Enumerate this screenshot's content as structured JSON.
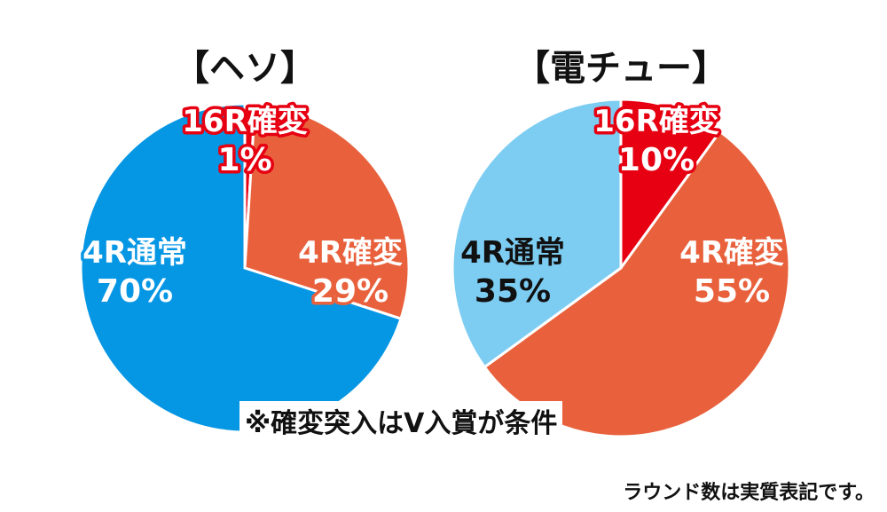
{
  "chart_data": [
    {
      "type": "pie",
      "title": "【ヘソ】",
      "slices": [
        {
          "label": "16R確変",
          "value": 1,
          "display": "1%",
          "color": "#e60012",
          "label_style": "outlined-red"
        },
        {
          "label": "4R確変",
          "value": 29,
          "display": "29%",
          "color": "#e8613c",
          "label_style": "outlined-white"
        },
        {
          "label": "4R通常",
          "value": 70,
          "display": "70%",
          "color": "#0596e4",
          "label_style": "outlined-white"
        }
      ]
    },
    {
      "type": "pie",
      "title": "【電チュー】",
      "slices": [
        {
          "label": "16R確変",
          "value": 10,
          "display": "10%",
          "color": "#e60012",
          "label_style": "outlined-red"
        },
        {
          "label": "4R確変",
          "value": 55,
          "display": "55%",
          "color": "#e8613c",
          "label_style": "outlined-white"
        },
        {
          "label": "4R通常",
          "value": 35,
          "display": "35%",
          "color": "#7dcdf3",
          "label_style": "dark"
        }
      ]
    }
  ],
  "footnote": "※確変突入はV入賞が条件",
  "caption": "ラウンド数は実質表記です。"
}
